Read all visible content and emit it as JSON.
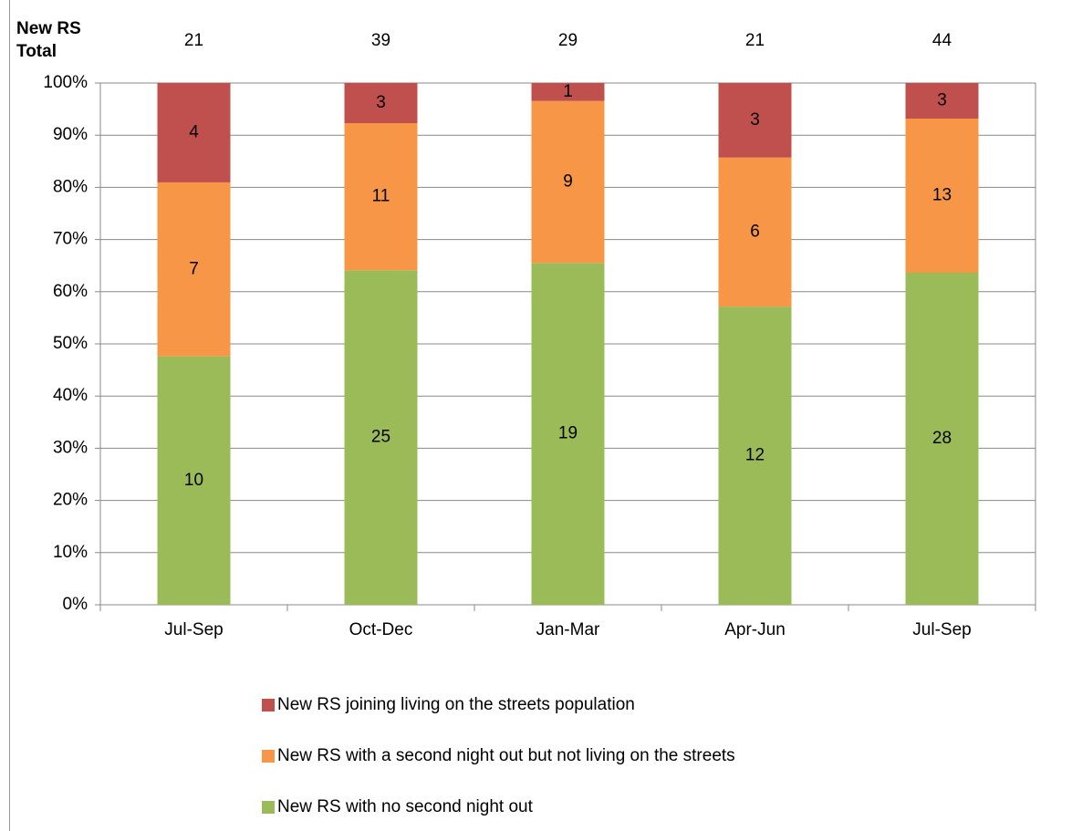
{
  "chart_data": {
    "type": "bar",
    "stacking": "percent",
    "totals_label": [
      "New RS",
      "Total"
    ],
    "totals": [
      21,
      39,
      29,
      21,
      44
    ],
    "categories": [
      "Jul-Sep",
      "Oct-Dec",
      "Jan-Mar",
      "Apr-Jun",
      "Jul-Sep"
    ],
    "series": [
      {
        "name": "New RS joining living on the streets population",
        "color": "#c0504d",
        "values": [
          4,
          3,
          1,
          3,
          3
        ]
      },
      {
        "name": "New RS with a second night out but not living on the streets",
        "color": "#f79646",
        "values": [
          7,
          11,
          9,
          6,
          13
        ]
      },
      {
        "name": "New RS with no second night out",
        "color": "#9bbb59",
        "values": [
          10,
          25,
          19,
          12,
          28
        ]
      }
    ],
    "ylim": [
      0,
      100
    ],
    "yticks": [
      {
        "value": 0,
        "label": "0%"
      },
      {
        "value": 10,
        "label": "10%"
      },
      {
        "value": 20,
        "label": "20%"
      },
      {
        "value": 30,
        "label": "30%"
      },
      {
        "value": 40,
        "label": "40%"
      },
      {
        "value": 50,
        "label": "50%"
      },
      {
        "value": 60,
        "label": "60%"
      },
      {
        "value": 70,
        "label": "70%"
      },
      {
        "value": 80,
        "label": "80%"
      },
      {
        "value": 90,
        "label": "90%"
      },
      {
        "value": 100,
        "label": "100%"
      }
    ],
    "grid": true,
    "legend": "bottom"
  }
}
